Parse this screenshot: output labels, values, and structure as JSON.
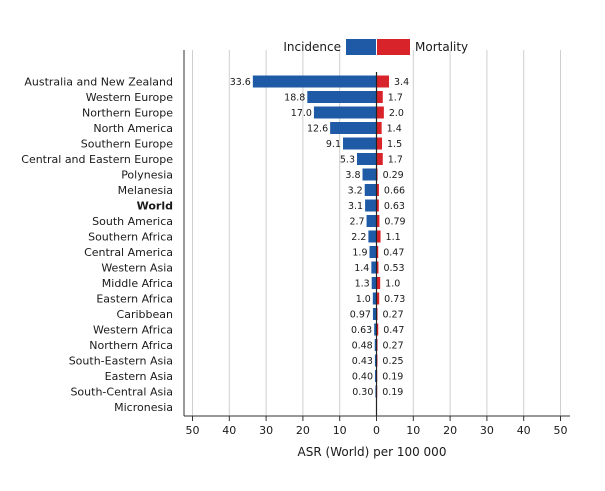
{
  "chart_data": {
    "type": "bar",
    "xlabel": "ASR (World) per 100 000",
    "xlim": [
      -50,
      50
    ],
    "x_ticks": [
      -50,
      -40,
      -30,
      -20,
      -10,
      0,
      10,
      20,
      30,
      40,
      50
    ],
    "x_tick_labels": [
      "50",
      "40",
      "30",
      "20",
      "10",
      "0",
      "10",
      "20",
      "30",
      "40",
      "50"
    ],
    "grid": "vertical",
    "legend_position": "top-center",
    "categories": [
      "Australia and New Zealand",
      "Western Europe",
      "Northern Europe",
      "North America",
      "Southern Europe",
      "Central and Eastern Europe",
      "Polynesia",
      "Melanesia",
      "World",
      "South America",
      "Southern Africa",
      "Central America",
      "Western Asia",
      "Middle Africa",
      "Eastern Africa",
      "Caribbean",
      "Western Africa",
      "Northern Africa",
      "South-Eastern Asia",
      "Eastern Asia",
      "South-Central Asia",
      "Micronesia"
    ],
    "highlighted_category": "World",
    "series": [
      {
        "name": "Incidence",
        "color": "#1f5aa6",
        "direction": "left",
        "values": [
          33.6,
          18.8,
          17.0,
          12.6,
          9.1,
          5.3,
          3.8,
          3.2,
          3.1,
          2.7,
          2.2,
          1.9,
          1.4,
          1.3,
          1.0,
          0.97,
          0.63,
          0.48,
          0.43,
          0.4,
          0.3,
          null
        ],
        "labels": [
          "33.6",
          "18.8",
          "17.0",
          "12.6",
          "9.1",
          "5.3",
          "3.8",
          "3.2",
          "3.1",
          "2.7",
          "2.2",
          "1.9",
          "1.4",
          "1.3",
          "1.0",
          "0.97",
          "0.63",
          "0.48",
          "0.43",
          "0.40",
          "0.30",
          ""
        ]
      },
      {
        "name": "Mortality",
        "color": "#d8232a",
        "direction": "right",
        "values": [
          3.4,
          1.7,
          2.0,
          1.4,
          1.5,
          1.7,
          0.29,
          0.66,
          0.63,
          0.79,
          1.1,
          0.47,
          0.53,
          1.0,
          0.73,
          0.27,
          0.47,
          0.27,
          0.25,
          0.19,
          0.19,
          null
        ],
        "labels": [
          "3.4",
          "1.7",
          "2.0",
          "1.4",
          "1.5",
          "1.7",
          "0.29",
          "0.66",
          "0.63",
          "0.79",
          "1.1",
          "0.47",
          "0.53",
          "1.0",
          "0.73",
          "0.27",
          "0.47",
          "0.27",
          "0.25",
          "0.19",
          "0.19",
          ""
        ]
      }
    ]
  }
}
